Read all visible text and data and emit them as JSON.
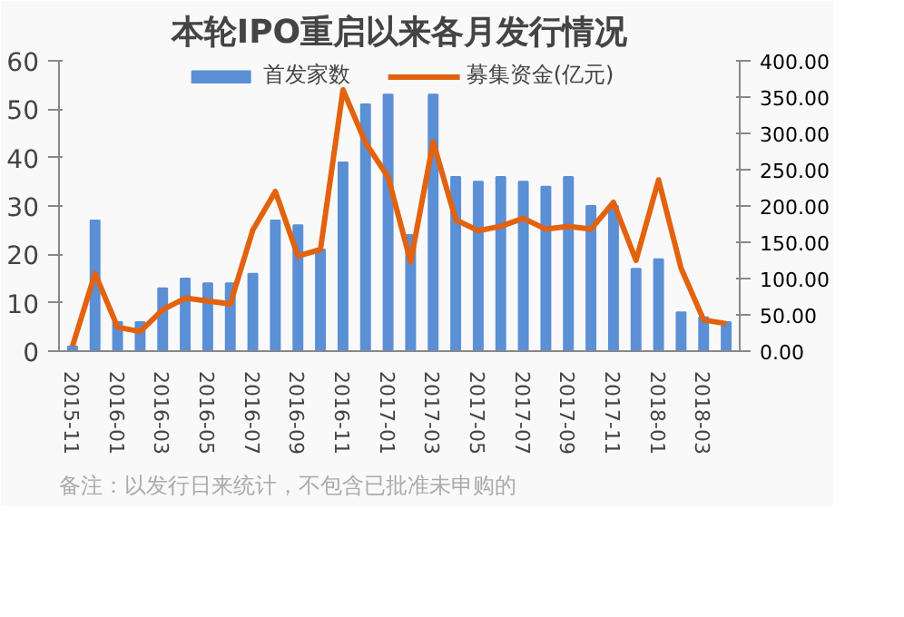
{
  "chart_data": {
    "type": "bar",
    "title": "本轮IPO重启以来各月发行情况",
    "categories": [
      "2015-11",
      null,
      "2016-01",
      null,
      "2016-03",
      null,
      "2016-05",
      null,
      "2016-07",
      null,
      "2016-09",
      null,
      "2016-11",
      null,
      "2017-01",
      null,
      "2017-03",
      null,
      "2017-05",
      null,
      "2017-07",
      null,
      "2017-09",
      null,
      "2017-11",
      null,
      "2018-01",
      null,
      "2018-03",
      null
    ],
    "series": [
      {
        "name": "首发家数",
        "color": "#5b8fd6",
        "values": [
          1,
          27,
          6,
          6,
          13,
          15,
          14,
          14,
          16,
          27,
          26,
          21,
          39,
          51,
          53,
          24,
          53,
          36,
          35,
          36,
          35,
          34,
          36,
          30,
          30,
          17,
          19,
          8,
          7,
          6
        ]
      },
      {
        "name": "募集资金(亿元)",
        "type": "line",
        "axis": "y2",
        "color": "#e3620e",
        "values": [
          7,
          107,
          33,
          27,
          57,
          73,
          69,
          65,
          167,
          220,
          131,
          140,
          360,
          287,
          240,
          123,
          288,
          181,
          166,
          172,
          183,
          168,
          172,
          168,
          205,
          125,
          236,
          114,
          43,
          38
        ]
      }
    ],
    "ylim": [
      0,
      60
    ],
    "yticks": [
      0,
      10,
      20,
      30,
      40,
      50,
      60
    ],
    "y2lim": [
      0,
      400
    ],
    "y2ticks": [
      {
        "value": 0,
        "label": "0.00"
      },
      {
        "value": 50,
        "label": "50.00"
      },
      {
        "value": 100,
        "label": "100.00"
      },
      {
        "value": 150,
        "label": "150.00"
      },
      {
        "value": 200,
        "label": "200.00"
      },
      {
        "value": 250,
        "label": "250.00"
      },
      {
        "value": 300,
        "label": "300.00"
      },
      {
        "value": 350,
        "label": "350.00"
      },
      {
        "value": 400,
        "label": "400.00"
      }
    ],
    "legend": "top",
    "grid": false,
    "annotations": [
      "备注：以发行日来统计，不包含已批准未申购的"
    ]
  }
}
